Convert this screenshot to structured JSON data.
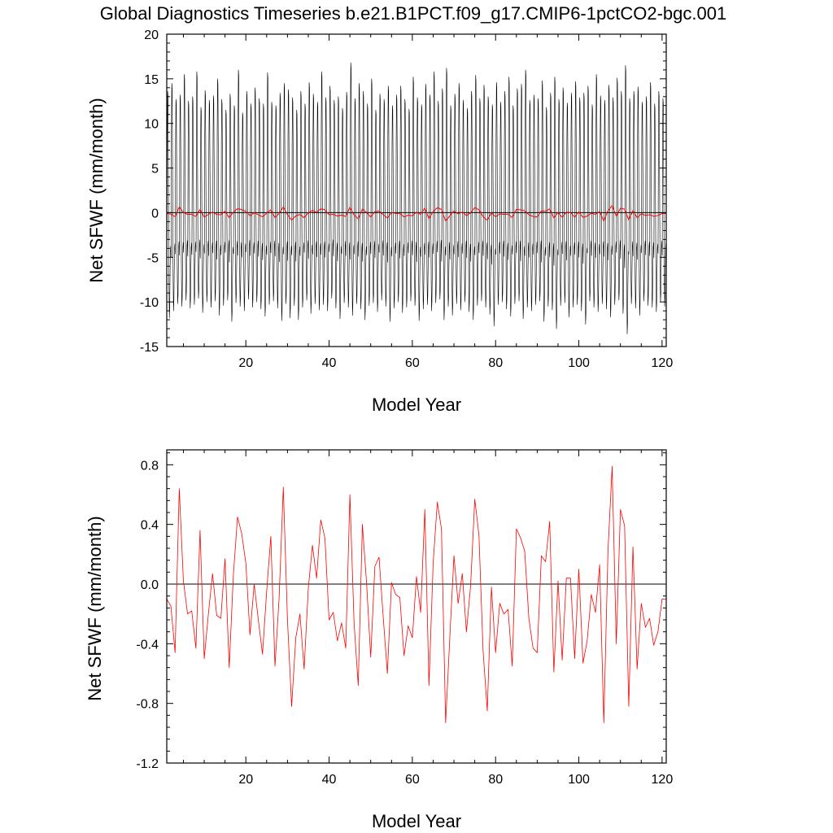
{
  "title": "Global Diagnostics Timeseries b.e21.B1PCT.f09_g17.CMIP6-1pctCO2-bgc.001",
  "colors": {
    "monthly": "#000000",
    "annual": "#ff0000",
    "zero_line": "#000000"
  },
  "chart_data": [
    {
      "type": "line",
      "xlabel": "Model Year",
      "ylabel": "Net SFWF (mm/month)",
      "xlim": [
        1,
        121
      ],
      "ylim": [
        -15,
        20
      ],
      "xticks": [
        20,
        40,
        60,
        80,
        100,
        120
      ],
      "yticks": [
        -15,
        -10,
        -5,
        0,
        5,
        10,
        15,
        20
      ],
      "ytick_labels": [
        "-15",
        "-10",
        "-5",
        "0",
        "5",
        "10",
        "15",
        "20"
      ],
      "grid": false,
      "series": [
        {
          "color": "#000000",
          "kind": "monthly",
          "x_start": 1.0417,
          "x_step": 0.08333,
          "values_pattern": [
            -5.0,
            8.0,
            13.0,
            12.5,
            6.0,
            -1.5,
            -8.0,
            -11.0,
            -10.0,
            -6.5,
            -4.0,
            -3.5
          ],
          "annual_peak": [
            13.6,
            14.5,
            12.7,
            13.2,
            15.5,
            12.5,
            13.0,
            15.8,
            11.8,
            13.7,
            12.6,
            13.1,
            15.0,
            12.7,
            11.5,
            13.3,
            12.0,
            16.0,
            11.2,
            13.6,
            12.2,
            14.0,
            12.8,
            12.2,
            15.7,
            12.4,
            12.0,
            13.4,
            14.5,
            13.8,
            12.9,
            11.5,
            13.6,
            12.2,
            14.6,
            13.3,
            12.4,
            15.8,
            12.9,
            14.2,
            12.6,
            13.0,
            11.7,
            13.5,
            16.8,
            12.8,
            14.5,
            13.6,
            12.2,
            15.0,
            11.5,
            13.3,
            12.7,
            14.2,
            12.0,
            13.2,
            14.2,
            12.7,
            11.6,
            15.2,
            12.9,
            12.1,
            14.4,
            13.2,
            15.8,
            12.5,
            13.9,
            16.2,
            12.0,
            13.3,
            14.5,
            12.6,
            11.7,
            13.6,
            15.4,
            12.8,
            14.3,
            13.0,
            12.1,
            14.6,
            12.4,
            13.6,
            15.2,
            12.0,
            13.9,
            14.4,
            16.0,
            12.6,
            13.2,
            12.8,
            14.8,
            11.8,
            13.4,
            15.2,
            12.7,
            14.0,
            12.3,
            13.4,
            14.7,
            12.9,
            13.4,
            14.2,
            12.1,
            15.5,
            13.1,
            12.6,
            14.3,
            12.9,
            15.1,
            13.6,
            16.5,
            12.8,
            13.6,
            14.1,
            12.4,
            13.0,
            14.6,
            12.2,
            13.6,
            12.8
          ],
          "annual_trough": [
            -11.8,
            -11.0,
            -10.2,
            -10.5,
            -9.8,
            -10.7,
            -10.3,
            -9.6,
            -11.2,
            -10.0,
            -10.6,
            -9.9,
            -11.5,
            -10.4,
            -9.8,
            -12.2,
            -10.1,
            -10.5,
            -11.0,
            -9.7,
            -10.6,
            -10.0,
            -10.8,
            -11.6,
            -10.3,
            -9.9,
            -10.7,
            -12.1,
            -10.2,
            -11.8,
            -10.4,
            -12.0,
            -10.6,
            -9.8,
            -11.3,
            -10.2,
            -10.9,
            -10.3,
            -11.0,
            -9.6,
            -10.7,
            -11.9,
            -10.1,
            -10.6,
            -11.5,
            -10.2,
            -10.8,
            -12.0,
            -10.4,
            -10.1,
            -11.1,
            -9.8,
            -10.5,
            -12.2,
            -10.7,
            -10.0,
            -11.2,
            -10.6,
            -9.9,
            -10.4,
            -12.1,
            -10.8,
            -10.3,
            -11.0,
            -10.1,
            -9.7,
            -12.0,
            -10.5,
            -11.5,
            -10.2,
            -10.9,
            -10.0,
            -11.1,
            -12.0,
            -10.4,
            -9.9,
            -10.6,
            -11.4,
            -12.7,
            -10.3,
            -10.0,
            -10.8,
            -11.6,
            -10.2,
            -9.9,
            -11.9,
            -10.6,
            -11.0,
            -10.3,
            -9.9,
            -12.2,
            -10.5,
            -10.9,
            -13.0,
            -10.4,
            -10.1,
            -11.7,
            -10.6,
            -10.3,
            -11.0,
            -12.5,
            -9.9,
            -10.6,
            -11.1,
            -10.2,
            -10.8,
            -11.7,
            -10.3,
            -9.8,
            -11.3,
            -13.6,
            -10.2,
            -10.7,
            -11.5,
            -9.9,
            -10.4,
            -10.6,
            -11.1,
            -10.0,
            -10.5
          ]
        },
        {
          "color": "#ff0000",
          "kind": "annual",
          "x": [
            1,
            2,
            3,
            4,
            5,
            6,
            7,
            8,
            9,
            10,
            11,
            12,
            13,
            14,
            15,
            16,
            17,
            18,
            19,
            20,
            21,
            22,
            23,
            24,
            25,
            26,
            27,
            28,
            29,
            30,
            31,
            32,
            33,
            34,
            35,
            36,
            37,
            38,
            39,
            40,
            41,
            42,
            43,
            44,
            45,
            46,
            47,
            48,
            49,
            50,
            51,
            52,
            53,
            54,
            55,
            56,
            57,
            58,
            59,
            60,
            61,
            62,
            63,
            64,
            65,
            66,
            67,
            68,
            69,
            70,
            71,
            72,
            73,
            74,
            75,
            76,
            77,
            78,
            79,
            80,
            81,
            82,
            83,
            84,
            85,
            86,
            87,
            88,
            89,
            90,
            91,
            92,
            93,
            94,
            95,
            96,
            97,
            98,
            99,
            100,
            101,
            102,
            103,
            104,
            105,
            106,
            107,
            108,
            109,
            110,
            111,
            112,
            113,
            114,
            115,
            116,
            117,
            118,
            119,
            120,
            121
          ],
          "values": [
            -0.1,
            -0.15,
            -0.46,
            0.64,
            0.02,
            -0.2,
            -0.18,
            -0.43,
            0.36,
            -0.5,
            -0.2,
            0.07,
            -0.21,
            -0.23,
            0.17,
            -0.56,
            0.06,
            0.45,
            0.34,
            0.14,
            -0.34,
            0.0,
            -0.24,
            -0.47,
            -0.05,
            0.32,
            -0.55,
            -0.09,
            0.65,
            -0.24,
            -0.82,
            -0.36,
            -0.2,
            -0.57,
            -0.03,
            0.26,
            0.04,
            0.43,
            0.31,
            -0.24,
            -0.19,
            -0.38,
            -0.26,
            -0.43,
            0.6,
            -0.26,
            -0.68,
            0.4,
            0.01,
            -0.49,
            0.12,
            0.18,
            -0.22,
            -0.6,
            0.01,
            -0.07,
            -0.09,
            -0.48,
            -0.28,
            -0.36,
            0.05,
            -0.19,
            0.5,
            -0.68,
            0.14,
            0.55,
            0.37,
            -0.93,
            -0.36,
            0.19,
            -0.13,
            0.07,
            -0.32,
            -0.01,
            0.57,
            0.33,
            -0.45,
            -0.85,
            -0.02,
            -0.46,
            -0.13,
            -0.2,
            -0.17,
            -0.55,
            0.37,
            0.31,
            0.22,
            -0.23,
            -0.43,
            -0.46,
            0.19,
            0.15,
            0.42,
            -0.59,
            0.02,
            -0.51,
            0.04,
            0.04,
            -0.5,
            0.1,
            -0.53,
            -0.38,
            -0.07,
            -0.19,
            0.13,
            -0.93,
            0.22,
            0.79,
            -0.4,
            0.5,
            0.39,
            -0.82,
            0.25,
            -0.57,
            -0.13,
            -0.29,
            -0.23,
            -0.41,
            -0.32,
            -0.1,
            -0.1
          ]
        }
      ]
    },
    {
      "type": "line",
      "xlabel": "Model Year",
      "ylabel": "Net SFWF (mm/month)",
      "xlim": [
        1,
        121
      ],
      "ylim": [
        -1.2,
        0.9
      ],
      "xticks": [
        20,
        40,
        60,
        80,
        100,
        120
      ],
      "yticks": [
        -1.2,
        -0.8,
        -0.4,
        0.0,
        0.4,
        0.8
      ],
      "ytick_labels": [
        "-1.2",
        "-0.8",
        "-0.4",
        "0.0",
        "0.4",
        "0.8"
      ],
      "grid": false,
      "series": [
        {
          "color": "#ff0000",
          "kind": "annual",
          "same_as": "panel1.annual"
        }
      ]
    }
  ]
}
